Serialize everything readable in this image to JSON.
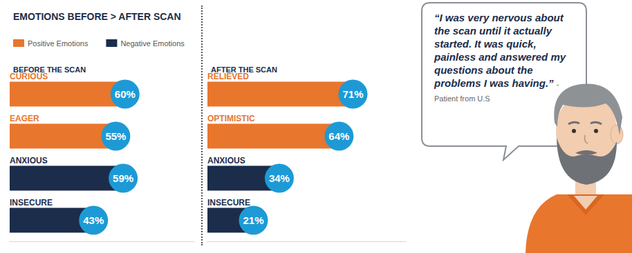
{
  "title": "EMOTIONS BEFORE > AFTER SCAN",
  "chart_data": [
    {
      "type": "bar",
      "title": "BEFORE THE SCAN",
      "orientation": "horizontal",
      "categories": [
        "CURIOUS",
        "EAGER",
        "ANXIOUS",
        "INSECURE"
      ],
      "series": [
        {
          "name": "Positive Emotions",
          "color": "#e8762d",
          "values": [
            60,
            55,
            null,
            null
          ],
          "value_labels": [
            "60%",
            "55%",
            null,
            null
          ]
        },
        {
          "name": "Negative Emotions",
          "color": "#1b2d4b",
          "values": [
            null,
            null,
            59,
            43
          ],
          "value_labels": [
            null,
            null,
            "59%",
            "43%"
          ]
        }
      ],
      "xlim": [
        0,
        100
      ],
      "tick_labels": false,
      "grid": false,
      "legend": "top-left",
      "data_labels": true
    },
    {
      "type": "bar",
      "title": "AFTER THE SCAN",
      "orientation": "horizontal",
      "categories": [
        "RELIEVED",
        "OPTIMISTIC",
        "ANXIOUS",
        "INSECURE"
      ],
      "series": [
        {
          "name": "Positive Emotions",
          "color": "#e8762d",
          "values": [
            71,
            64,
            null,
            null
          ],
          "value_labels": [
            "71%",
            "64%",
            null,
            null
          ]
        },
        {
          "name": "Negative Emotions",
          "color": "#1b2d4b",
          "values": [
            null,
            null,
            34,
            21
          ],
          "value_labels": [
            null,
            null,
            "34%",
            "21%"
          ]
        }
      ],
      "xlim": [
        0,
        100
      ],
      "tick_labels": false,
      "grid": false,
      "legend": "top-left",
      "data_labels": true
    }
  ],
  "quote": {
    "text": "“I was very nervous about the scan until it actually started.  It was quick, painless and answered my questions about the problems I was having.”",
    "attribution": "- Patient from U.S"
  }
}
